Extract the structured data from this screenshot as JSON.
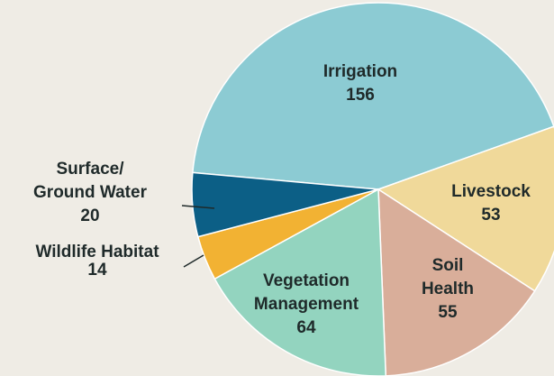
{
  "chart_data": {
    "type": "pie",
    "categories": [
      [
        "Irrigation"
      ],
      [
        "Livestock"
      ],
      [
        "Soil",
        "Health"
      ],
      [
        "Vegetation",
        "Management"
      ],
      [
        "Wildlife Habitat"
      ],
      [
        "Surface/",
        "Ground Water"
      ]
    ],
    "values": [
      156,
      53,
      55,
      64,
      14,
      20
    ],
    "colors": [
      "#8ccbd3",
      "#f0d99a",
      "#d9ae9a",
      "#93d4bf",
      "#f2b233",
      "#0c5f86"
    ]
  }
}
